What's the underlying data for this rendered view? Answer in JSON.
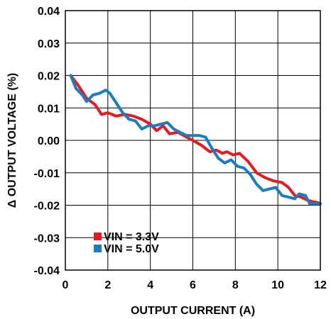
{
  "chart_data": {
    "type": "line",
    "xlabel": "OUTPUT CURRENT (A)",
    "ylabel": "Δ OUTPUT VOLTAGE (%)",
    "xlim": [
      0,
      12
    ],
    "ylim": [
      -0.04,
      0.04
    ],
    "xticks": [
      "0",
      "2",
      "4",
      "6",
      "8",
      "10",
      "12"
    ],
    "yticks": [
      "0.04",
      "0.03",
      "0.02",
      "0.01",
      "0.00",
      "-0.01",
      "-0.02",
      "-0.03",
      "-0.04"
    ],
    "grid": true,
    "legend_position": "bottom-left",
    "series": [
      {
        "name": "VIN = 3.3V",
        "color": "#e8191f",
        "x": [
          0.25,
          0.6,
          1.0,
          1.4,
          1.7,
          2.0,
          2.4,
          2.8,
          3.2,
          3.6,
          4.0,
          4.3,
          4.6,
          4.9,
          5.3,
          5.7,
          6.0,
          6.4,
          6.8,
          7.1,
          7.4,
          7.6,
          7.9,
          8.2,
          8.6,
          9.0,
          9.4,
          9.8,
          10.2,
          10.5,
          10.8,
          11.1,
          11.4,
          11.7,
          11.9
        ],
        "y": [
          0.02,
          0.017,
          0.013,
          0.011,
          0.008,
          0.0085,
          0.0075,
          0.008,
          0.0075,
          0.0065,
          0.005,
          0.003,
          0.0045,
          0.002,
          0.0025,
          0.001,
          0.0,
          -0.0015,
          -0.0035,
          -0.003,
          -0.004,
          -0.0035,
          -0.0045,
          -0.004,
          -0.0065,
          -0.01,
          -0.0115,
          -0.0125,
          -0.013,
          -0.0145,
          -0.017,
          -0.0175,
          -0.0185,
          -0.019,
          -0.0192
        ]
      },
      {
        "name": "VIN = 5.0V",
        "color": "#1a7dc0",
        "x": [
          0.25,
          0.5,
          0.8,
          1.0,
          1.3,
          1.6,
          1.9,
          2.1,
          2.4,
          2.7,
          3.0,
          3.3,
          3.6,
          3.9,
          4.2,
          4.5,
          4.8,
          5.1,
          5.4,
          5.7,
          6.0,
          6.3,
          6.6,
          6.9,
          7.2,
          7.5,
          7.8,
          8.1,
          8.4,
          8.7,
          9.0,
          9.3,
          9.6,
          9.9,
          10.2,
          10.5,
          10.8,
          11.0,
          11.3,
          11.5,
          11.8,
          12.0
        ],
        "y": [
          0.02,
          0.016,
          0.014,
          0.012,
          0.014,
          0.0145,
          0.0155,
          0.0145,
          0.0115,
          0.0085,
          0.0065,
          0.006,
          0.0035,
          0.0045,
          0.0045,
          0.005,
          0.0055,
          0.0035,
          0.0025,
          0.0015,
          0.0015,
          0.0015,
          0.001,
          -0.0025,
          -0.0055,
          -0.007,
          -0.006,
          -0.008,
          -0.0085,
          -0.0105,
          -0.0135,
          -0.0155,
          -0.015,
          -0.0145,
          -0.017,
          -0.0175,
          -0.018,
          -0.0165,
          -0.017,
          -0.0195,
          -0.0195,
          -0.0195
        ]
      }
    ]
  }
}
